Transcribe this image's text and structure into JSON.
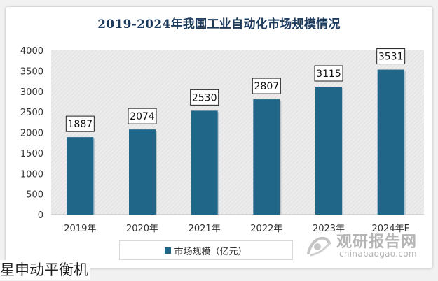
{
  "chart_data": {
    "type": "bar",
    "title": "2019-2024年我国工业自动化市场规模情况",
    "categories": [
      "2019年",
      "2020年",
      "2021年",
      "2022年",
      "2023年",
      "2024年E"
    ],
    "series": [
      {
        "name": "市场规模（亿元）",
        "values": [
          1887,
          2074,
          2530,
          2807,
          3115,
          3531
        ]
      }
    ],
    "y_ticks": [
      "0",
      "500",
      "1000",
      "1500",
      "2000",
      "2500",
      "3000",
      "3500",
      "4000"
    ],
    "ylim": [
      0,
      4000
    ],
    "data_labels": [
      "1887",
      "2074",
      "2530",
      "2807",
      "3115",
      "3531"
    ],
    "legend_position": "bottom",
    "grid": false,
    "bar_color": "#1f6689",
    "plot_background": "hatched light gray"
  },
  "watermark": {
    "name_cn": "观研报告网",
    "name_en": "chinabaogao.com"
  },
  "caption": "星申动平衡机"
}
